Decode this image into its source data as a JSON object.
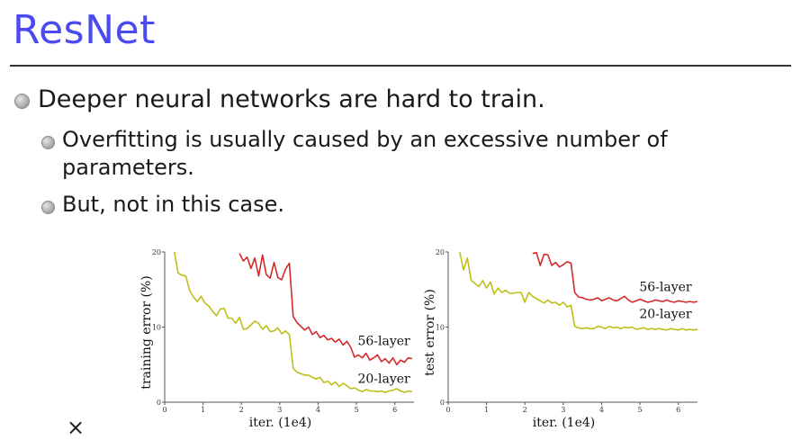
{
  "slide": {
    "title": "ResNet",
    "bullets": [
      {
        "level": 1,
        "text": "Deeper neural networks are hard to train."
      },
      {
        "level": 2,
        "text": "Overfitting is usually caused by an excessive number of parameters."
      },
      {
        "level": 2,
        "text": "But, not in this case."
      }
    ],
    "close_icon": "×"
  },
  "chart_data": [
    {
      "type": "line",
      "xlabel": "iter. (1e4)",
      "ylabel": "training error (%)",
      "xlim": [
        0,
        6.5
      ],
      "ylim": [
        0,
        20
      ],
      "xticks": [
        "0",
        "1",
        "2",
        "3",
        "4",
        "5",
        "6"
      ],
      "yticks": [
        "0",
        "10",
        "20"
      ],
      "series": [
        {
          "name": "56-layer",
          "color": "#d42a2a",
          "x": [
            1.95,
            2.05,
            2.15,
            2.25,
            2.35,
            2.45,
            2.55,
            2.65,
            2.75,
            2.85,
            2.95,
            3.05,
            3.15,
            3.25,
            3.35,
            3.45,
            3.55,
            3.65,
            3.75,
            3.85,
            3.95,
            4.05,
            4.15,
            4.25,
            4.35,
            4.45,
            4.55,
            4.65,
            4.75,
            4.85,
            4.95,
            5.05,
            5.15,
            5.25,
            5.35,
            5.45,
            5.55,
            5.65,
            5.75,
            5.85,
            5.95,
            6.05,
            6.15,
            6.25,
            6.35,
            6.45
          ],
          "y": [
            19.8,
            18.8,
            19.3,
            17.8,
            19.2,
            16.8,
            19.6,
            17.0,
            16.5,
            18.6,
            16.6,
            16.3,
            17.7,
            18.5,
            11.4,
            10.6,
            10.1,
            9.6,
            10.0,
            9.0,
            9.4,
            8.6,
            8.9,
            8.3,
            8.5,
            8.0,
            8.4,
            7.6,
            8.1,
            7.3,
            6.0,
            6.3,
            5.9,
            6.5,
            5.6,
            5.9,
            6.3,
            5.4,
            5.8,
            5.2,
            5.9,
            5.0,
            5.6,
            5.3,
            5.9,
            5.8
          ],
          "label": "56-layer"
        },
        {
          "name": "20-layer",
          "color": "#bfbf1a",
          "x": [
            0.25,
            0.35,
            0.45,
            0.55,
            0.65,
            0.75,
            0.85,
            0.95,
            1.05,
            1.15,
            1.25,
            1.35,
            1.45,
            1.55,
            1.65,
            1.75,
            1.85,
            1.95,
            2.05,
            2.15,
            2.25,
            2.35,
            2.45,
            2.55,
            2.65,
            2.75,
            2.85,
            2.95,
            3.05,
            3.15,
            3.25,
            3.35,
            3.45,
            3.55,
            3.65,
            3.75,
            3.85,
            3.95,
            4.05,
            4.15,
            4.25,
            4.35,
            4.45,
            4.55,
            4.65,
            4.75,
            4.85,
            4.95,
            5.05,
            5.15,
            5.25,
            5.35,
            5.45,
            5.55,
            5.65,
            5.75,
            5.85,
            5.95,
            6.05,
            6.15,
            6.25,
            6.35,
            6.45
          ],
          "y": [
            20.0,
            17.2,
            16.9,
            16.8,
            14.9,
            14.0,
            13.4,
            14.1,
            13.2,
            12.8,
            12.1,
            11.5,
            12.4,
            12.5,
            11.2,
            11.2,
            10.5,
            11.3,
            9.7,
            9.8,
            10.3,
            10.8,
            10.5,
            9.7,
            10.2,
            9.4,
            9.5,
            9.9,
            9.1,
            9.5,
            9.0,
            4.5,
            4.0,
            3.8,
            3.6,
            3.6,
            3.3,
            3.1,
            3.3,
            2.6,
            2.8,
            2.3,
            2.7,
            2.1,
            2.5,
            2.2,
            1.8,
            1.9,
            1.6,
            1.4,
            1.7,
            1.5,
            1.5,
            1.4,
            1.5,
            1.3,
            1.5,
            1.6,
            1.8,
            1.5,
            1.3,
            1.5,
            1.4
          ],
          "label": "20-layer"
        }
      ]
    },
    {
      "type": "line",
      "xlabel": "iter. (1e4)",
      "ylabel": "test error (%)",
      "xlim": [
        0,
        6.5
      ],
      "ylim": [
        0,
        20
      ],
      "xticks": [
        "0",
        "1",
        "2",
        "3",
        "4",
        "5",
        "6"
      ],
      "yticks": [
        "0",
        "10",
        "20"
      ],
      "series": [
        {
          "name": "56-layer",
          "color": "#d42a2a",
          "x": [
            2.2,
            2.3,
            2.4,
            2.5,
            2.6,
            2.7,
            2.8,
            2.9,
            3.0,
            3.1,
            3.2,
            3.3,
            3.4,
            3.5,
            3.6,
            3.7,
            3.8,
            3.9,
            4.0,
            4.1,
            4.2,
            4.3,
            4.4,
            4.5,
            4.6,
            4.7,
            4.8,
            4.9,
            5.0,
            5.1,
            5.2,
            5.3,
            5.4,
            5.5,
            5.6,
            5.7,
            5.8,
            5.9,
            6.0,
            6.1,
            6.2,
            6.3,
            6.4,
            6.5
          ],
          "y": [
            19.8,
            19.9,
            18.2,
            19.7,
            19.6,
            18.2,
            18.6,
            18.0,
            18.3,
            18.7,
            18.5,
            14.6,
            14.0,
            13.9,
            13.7,
            13.6,
            13.7,
            13.9,
            13.5,
            13.7,
            13.9,
            13.6,
            13.5,
            13.8,
            14.1,
            13.6,
            13.3,
            13.5,
            13.7,
            13.5,
            13.3,
            13.4,
            13.6,
            13.5,
            13.4,
            13.6,
            13.4,
            13.3,
            13.5,
            13.4,
            13.3,
            13.4,
            13.3,
            13.4
          ],
          "label": "56-layer"
        },
        {
          "name": "20-layer",
          "color": "#bfbf1a",
          "x": [
            0.3,
            0.4,
            0.5,
            0.6,
            0.7,
            0.8,
            0.9,
            1.0,
            1.1,
            1.2,
            1.3,
            1.4,
            1.5,
            1.6,
            1.7,
            1.8,
            1.9,
            2.0,
            2.1,
            2.2,
            2.3,
            2.4,
            2.5,
            2.6,
            2.7,
            2.8,
            2.9,
            3.0,
            3.1,
            3.2,
            3.3,
            3.4,
            3.5,
            3.6,
            3.7,
            3.8,
            3.9,
            4.0,
            4.1,
            4.2,
            4.3,
            4.4,
            4.5,
            4.6,
            4.7,
            4.8,
            4.9,
            5.0,
            5.1,
            5.2,
            5.3,
            5.4,
            5.5,
            5.6,
            5.7,
            5.8,
            5.9,
            6.0,
            6.1,
            6.2,
            6.3,
            6.4,
            6.5
          ],
          "y": [
            20.0,
            17.6,
            19.2,
            16.2,
            15.8,
            15.4,
            16.2,
            15.2,
            16.0,
            14.4,
            15.2,
            14.6,
            14.9,
            14.5,
            14.5,
            14.6,
            14.6,
            13.3,
            14.6,
            14.1,
            13.8,
            13.5,
            13.2,
            13.6,
            13.2,
            13.3,
            12.9,
            13.3,
            12.7,
            12.9,
            10.1,
            9.9,
            9.8,
            9.9,
            9.8,
            9.8,
            10.1,
            10.0,
            9.8,
            10.1,
            9.9,
            10.0,
            9.8,
            10.0,
            9.9,
            10.0,
            9.7,
            9.8,
            9.9,
            9.7,
            9.8,
            9.7,
            9.8,
            9.7,
            9.6,
            9.8,
            9.7,
            9.6,
            9.8,
            9.6,
            9.7,
            9.6,
            9.7
          ],
          "label": "20-layer"
        }
      ]
    }
  ]
}
